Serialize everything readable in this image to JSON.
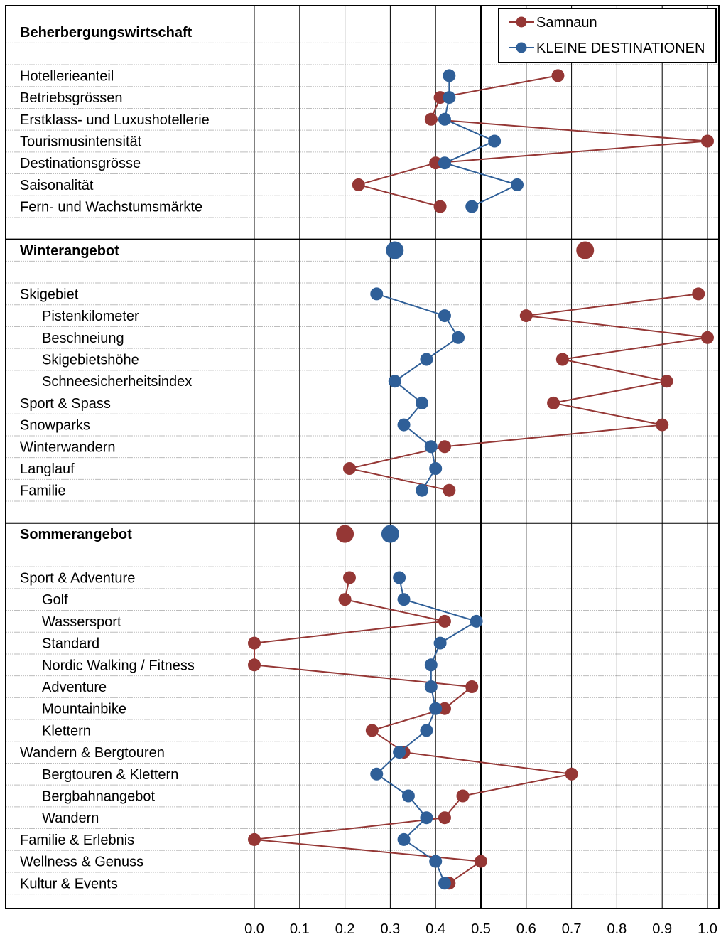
{
  "chart_data": {
    "type": "line",
    "orientation": "horizontal-profile",
    "xlim": [
      0.0,
      1.0
    ],
    "x_ticks": [
      "0.0",
      "0.1",
      "0.2",
      "0.3",
      "0.4",
      "0.5",
      "0.6",
      "0.7",
      "0.8",
      "0.9",
      "1.0"
    ],
    "grid": true,
    "legend_position": "top-right",
    "legend": [
      {
        "name": "Samnaun",
        "color": "#953735"
      },
      {
        "name": "KLEINE DESTINATIONEN",
        "color": "#2f5f98"
      }
    ],
    "sections": [
      {
        "title": "Beherbergungswirtschaft",
        "header_values": [
          null,
          null
        ],
        "rows": [
          {
            "label": "Hotellerieanteil",
            "indent": false,
            "samnaun": 0.67,
            "klein": 0.43
          },
          {
            "label": "Betriebsgrössen",
            "indent": false,
            "samnaun": 0.41,
            "klein": 0.43
          },
          {
            "label": "Erstklass- und Luxushotellerie",
            "indent": false,
            "samnaun": 0.39,
            "klein": 0.42
          },
          {
            "label": "Tourismusintensität",
            "indent": false,
            "samnaun": 1.0,
            "klein": 0.53
          },
          {
            "label": "Destinationsgrösse",
            "indent": false,
            "samnaun": 0.4,
            "klein": 0.42
          },
          {
            "label": "Saisonalität",
            "indent": false,
            "samnaun": 0.23,
            "klein": 0.58
          },
          {
            "label": "Fern- und Wachstumsmärkte",
            "indent": false,
            "samnaun": 0.41,
            "klein": 0.48
          }
        ]
      },
      {
        "title": "Winterangebot",
        "header_values": [
          0.73,
          0.31
        ],
        "rows": [
          {
            "label": "Skigebiet",
            "indent": false,
            "samnaun": 0.98,
            "klein": 0.27
          },
          {
            "label": "Pistenkilometer",
            "indent": true,
            "samnaun": 0.6,
            "klein": 0.42
          },
          {
            "label": "Beschneiung",
            "indent": true,
            "samnaun": 1.0,
            "klein": 0.45
          },
          {
            "label": "Skigebietshöhe",
            "indent": true,
            "samnaun": 0.68,
            "klein": 0.38
          },
          {
            "label": "Schneesicherheitsindex",
            "indent": true,
            "samnaun": 0.91,
            "klein": 0.31
          },
          {
            "label": "Sport & Spass",
            "indent": false,
            "samnaun": 0.66,
            "klein": 0.37
          },
          {
            "label": "Snowparks",
            "indent": false,
            "samnaun": 0.9,
            "klein": 0.33
          },
          {
            "label": "Winterwandern",
            "indent": false,
            "samnaun": 0.42,
            "klein": 0.39
          },
          {
            "label": "Langlauf",
            "indent": false,
            "samnaun": 0.21,
            "klein": 0.4
          },
          {
            "label": "Familie",
            "indent": false,
            "samnaun": 0.43,
            "klein": 0.37
          }
        ]
      },
      {
        "title": "Sommerangebot",
        "header_values": [
          0.2,
          0.3
        ],
        "rows": [
          {
            "label": "Sport & Adventure",
            "indent": false,
            "samnaun": 0.21,
            "klein": 0.32
          },
          {
            "label": "Golf",
            "indent": true,
            "samnaun": 0.2,
            "klein": 0.33
          },
          {
            "label": "Wassersport",
            "indent": true,
            "samnaun": 0.42,
            "klein": 0.49
          },
          {
            "label": "Standard",
            "indent": true,
            "samnaun": 0.0,
            "klein": 0.41
          },
          {
            "label": "Nordic Walking / Fitness",
            "indent": true,
            "samnaun": 0.0,
            "klein": 0.39
          },
          {
            "label": "Adventure",
            "indent": true,
            "samnaun": 0.48,
            "klein": 0.39
          },
          {
            "label": "Mountainbike",
            "indent": true,
            "samnaun": 0.42,
            "klein": 0.4
          },
          {
            "label": "Klettern",
            "indent": true,
            "samnaun": 0.26,
            "klein": 0.38
          },
          {
            "label": "Wandern & Bergtouren",
            "indent": false,
            "samnaun": 0.33,
            "klein": 0.32
          },
          {
            "label": "Bergtouren & Klettern",
            "indent": true,
            "samnaun": 0.7,
            "klein": 0.27
          },
          {
            "label": "Bergbahnangebot",
            "indent": true,
            "samnaun": 0.46,
            "klein": 0.34
          },
          {
            "label": "Wandern",
            "indent": true,
            "samnaun": 0.42,
            "klein": 0.38
          },
          {
            "label": "Familie & Erlebnis",
            "indent": false,
            "samnaun": 0.0,
            "klein": 0.33
          },
          {
            "label": "Wellness & Genuss",
            "indent": false,
            "samnaun": 0.5,
            "klein": 0.4
          },
          {
            "label": "Kultur & Events",
            "indent": false,
            "samnaun": 0.43,
            "klein": 0.42
          }
        ]
      }
    ]
  }
}
